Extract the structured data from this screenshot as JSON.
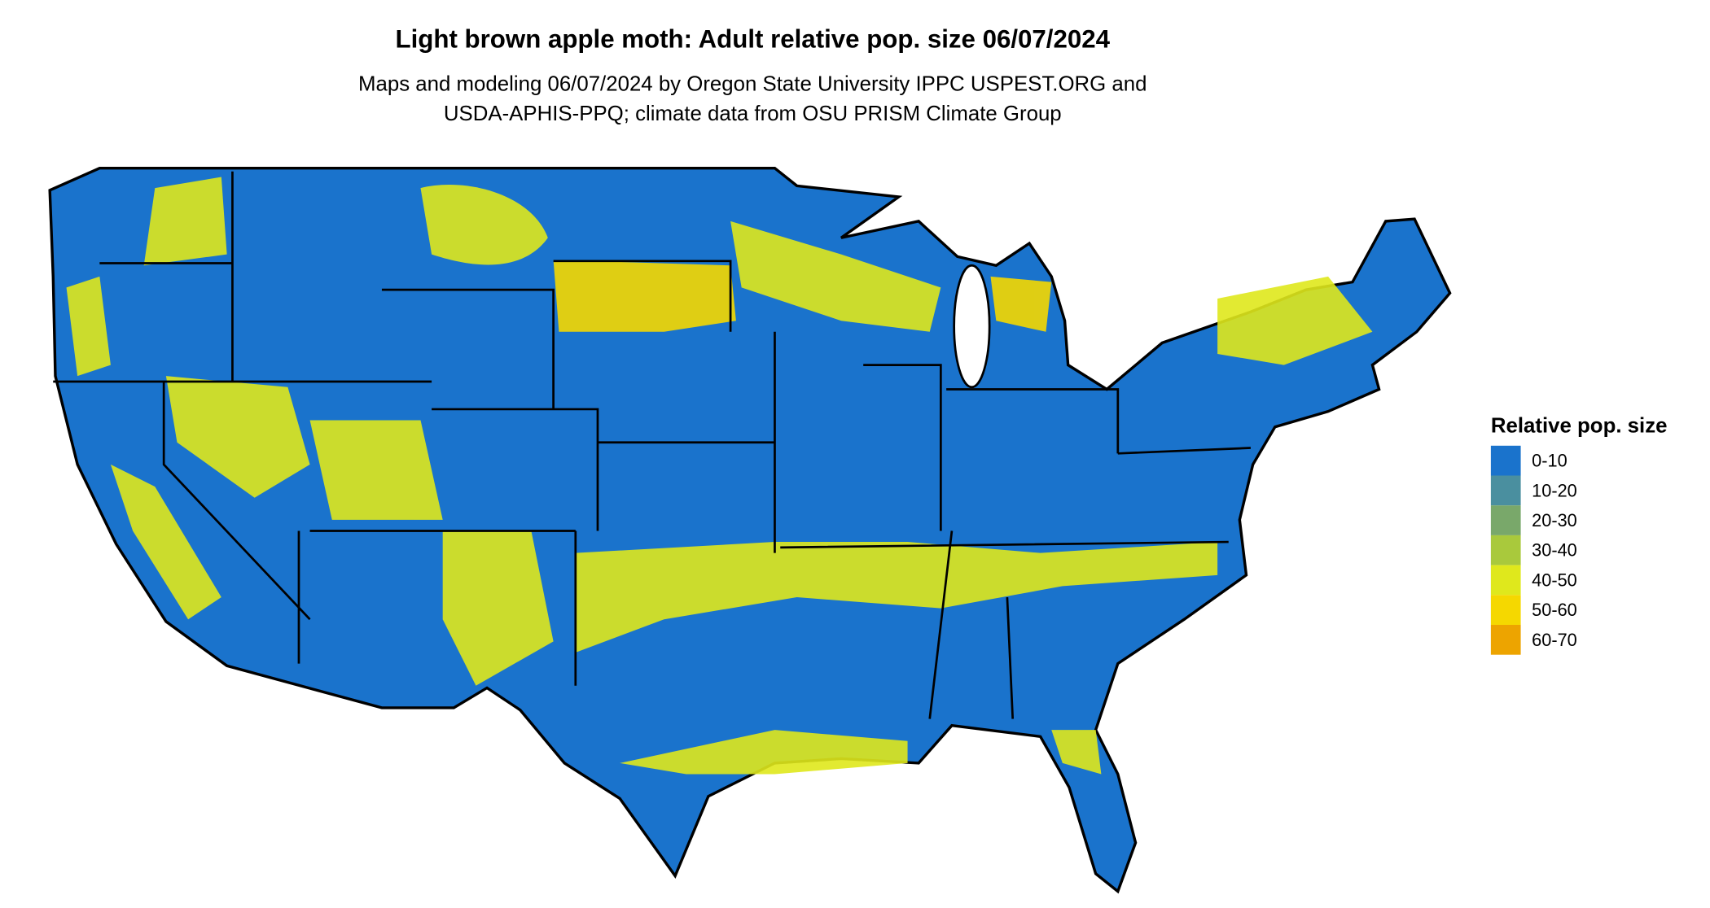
{
  "title": "Light brown apple moth: Adult relative pop. size 06/07/2024",
  "subtitle": [
    "Maps and modeling 06/07/2024 by Oregon State University IPPC USPEST.ORG and",
    "USDA-APHIS-PPQ; climate data from OSU PRISM Climate Group"
  ],
  "legend": {
    "title": "Relative pop. size",
    "items": [
      {
        "label": "0-10",
        "color": "#1a73cc"
      },
      {
        "label": "10-20",
        "color": "#4a8f9f"
      },
      {
        "label": "20-30",
        "color": "#79a86a"
      },
      {
        "label": "30-40",
        "color": "#a9c93c"
      },
      {
        "label": "40-50",
        "color": "#dfe81c"
      },
      {
        "label": "50-60",
        "color": "#f5d800"
      },
      {
        "label": "60-70",
        "color": "#eda400"
      }
    ]
  }
}
